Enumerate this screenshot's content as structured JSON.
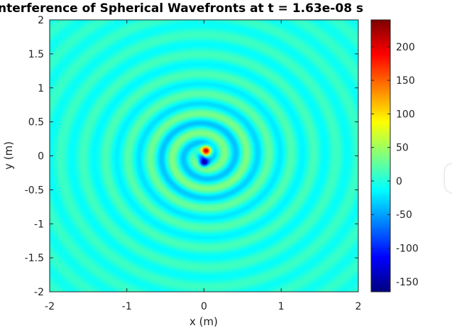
{
  "chart_data": {
    "type": "heatmap",
    "title": "nterference of Spherical Wavefronts at t = 1.63e-08 s",
    "xlabel": "x (m)",
    "ylabel": "y (m)",
    "xlim": [
      -2,
      2
    ],
    "ylim": [
      -2,
      2
    ],
    "x_ticks": [
      "-2",
      "-1",
      "0",
      "1",
      "2"
    ],
    "y_ticks": [
      "2",
      "1.5",
      "1",
      "0.5",
      "0",
      "-0.5",
      "-1",
      "-1.5",
      "-2"
    ],
    "colorbar": {
      "colormap": "jet",
      "range": [
        -165,
        240
      ],
      "ticks": [
        "200",
        "150",
        "100",
        "50",
        "0",
        "-50",
        "-100",
        "-150"
      ]
    },
    "field_features": {
      "background_level": 0,
      "ring_spacing_m": 0.29,
      "ring_amplitude_far": 30,
      "peak_value": 240,
      "peak_location": [
        0.03,
        0.08
      ],
      "trough_value": -165,
      "trough_location": [
        0.0,
        -0.1
      ],
      "ring_attenuation": "1/r"
    }
  },
  "colors": {
    "axis": "#222222",
    "jet_stops": [
      "#00007f",
      "#0000ff",
      "#007fff",
      "#00ffff",
      "#7fff7f",
      "#ffff00",
      "#ff7f00",
      "#ff0000",
      "#7f0000"
    ]
  }
}
